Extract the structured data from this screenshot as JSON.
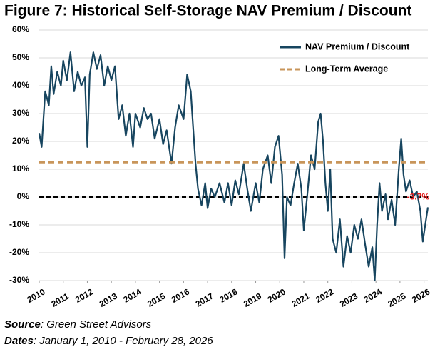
{
  "chart_data": {
    "type": "line",
    "title": "Figure 7: Historical Self-Storage NAV Premium / Discount",
    "xlim": [
      2010,
      2026.16
    ],
    "xticks": [
      2010,
      2011,
      2012,
      2013,
      2014,
      2015,
      2016,
      2017,
      2018,
      2019,
      2020,
      2021,
      2022,
      2023,
      2024,
      2025,
      2026
    ],
    "ylim": [
      -30,
      60
    ],
    "yticks": [
      {
        "value": -30,
        "label": "-30%"
      },
      {
        "value": -20,
        "label": "-20%"
      },
      {
        "value": -10,
        "label": "-10%"
      },
      {
        "value": 0,
        "label": "0%"
      },
      {
        "value": 10,
        "label": "10%"
      },
      {
        "value": 20,
        "label": "20%"
      },
      {
        "value": 30,
        "label": "30%"
      },
      {
        "value": 40,
        "label": "40%"
      },
      {
        "value": 50,
        "label": "50%"
      },
      {
        "value": 60,
        "label": "60%"
      }
    ],
    "grid": true,
    "legend": "upper right",
    "reference_line": {
      "value": 0,
      "color": "#000000"
    },
    "series": [
      {
        "name": "NAV Premium / Discount",
        "color": "#17455f",
        "dashed": false,
        "x": [
          2010.0,
          2010.1,
          2010.25,
          2010.4,
          2010.5,
          2010.6,
          2010.75,
          2010.9,
          2011.0,
          2011.15,
          2011.3,
          2011.45,
          2011.6,
          2011.75,
          2011.9,
          2012.0,
          2012.1,
          2012.25,
          2012.4,
          2012.55,
          2012.7,
          2012.85,
          2013.0,
          2013.15,
          2013.3,
          2013.45,
          2013.6,
          2013.75,
          2013.9,
          2014.0,
          2014.2,
          2014.35,
          2014.5,
          2014.65,
          2014.8,
          2015.0,
          2015.15,
          2015.3,
          2015.5,
          2015.65,
          2015.8,
          2016.0,
          2016.15,
          2016.3,
          2016.4,
          2016.5,
          2016.6,
          2016.75,
          2016.9,
          2017.0,
          2017.15,
          2017.3,
          2017.5,
          2017.7,
          2017.85,
          2018.0,
          2018.15,
          2018.3,
          2018.5,
          2018.65,
          2018.8,
          2019.0,
          2019.15,
          2019.3,
          2019.5,
          2019.65,
          2019.8,
          2019.95,
          2020.1,
          2020.2,
          2020.3,
          2020.45,
          2020.6,
          2020.75,
          2020.9,
          2021.0,
          2021.15,
          2021.3,
          2021.45,
          2021.6,
          2021.7,
          2021.8,
          2021.9,
          2022.0,
          2022.1,
          2022.2,
          2022.35,
          2022.5,
          2022.65,
          2022.8,
          2022.95,
          2023.1,
          2023.25,
          2023.4,
          2023.55,
          2023.7,
          2023.85,
          2023.95,
          2024.05,
          2024.15,
          2024.25,
          2024.4,
          2024.5,
          2024.65,
          2024.8,
          2024.95,
          2025.05,
          2025.15,
          2025.25,
          2025.4,
          2025.55,
          2025.7,
          2025.85,
          2025.95,
          2026.05,
          2026.16
        ],
        "values": [
          23,
          18,
          38,
          33,
          47,
          37,
          45,
          40,
          49,
          42,
          52,
          38,
          45,
          40,
          43,
          18,
          44,
          52,
          46,
          51,
          40,
          47,
          42,
          47,
          28,
          33,
          22,
          30,
          18,
          30,
          25,
          32,
          28,
          30,
          21,
          28,
          19,
          24,
          12,
          25,
          33,
          28,
          44,
          38,
          25,
          12,
          3,
          -3,
          5,
          -4,
          3,
          0,
          5,
          -2,
          5,
          -3,
          6,
          1,
          12,
          3,
          -5,
          5,
          -2,
          10,
          15,
          5,
          18,
          22,
          8,
          -22,
          0,
          -3,
          5,
          12,
          3,
          -12,
          1,
          15,
          10,
          27,
          30,
          20,
          5,
          -5,
          10,
          -15,
          -20,
          -8,
          -25,
          -14,
          -20,
          -10,
          -15,
          -8,
          -17,
          -25,
          -18,
          -30,
          -10,
          5,
          -5,
          1,
          -8,
          -1,
          -10,
          10,
          21,
          8,
          2,
          6,
          0,
          2,
          -5,
          -16,
          -10,
          -3.7
        ]
      },
      {
        "name": "Long-Term Average",
        "color": "#c8955a",
        "dashed": true,
        "x": [
          2010,
          2026.16
        ],
        "values": [
          12.5,
          12.5
        ]
      }
    ],
    "annotation": {
      "text": "-3.7%",
      "color": "#e31b1b"
    },
    "source": {
      "label": "Source",
      "text": ": Green Street Advisors"
    },
    "dates": {
      "label": "Dates",
      "text": ": January 1, 2010 - February 28, 2026"
    }
  }
}
